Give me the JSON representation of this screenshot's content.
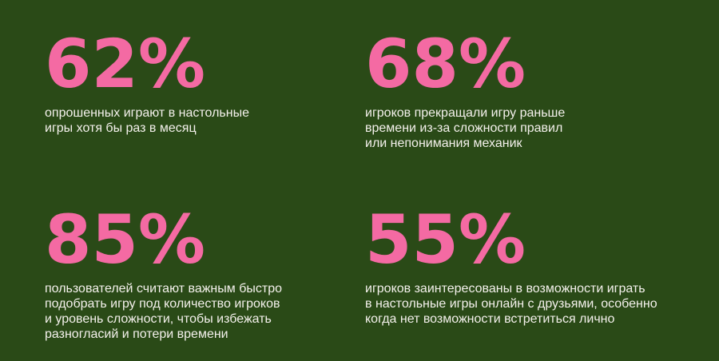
{
  "accent_color": "#f46aa3",
  "background_color": "#2a4a17",
  "text_color": "#f4f1ec",
  "stats": [
    {
      "value": "62%",
      "description": "опрошенных играют в настольные\nигры хотя бы раз в месяц"
    },
    {
      "value": "68%",
      "description": "игроков прекращали игру раньше\nвремени из-за сложности правил\nили непонимания механик"
    },
    {
      "value": "85%",
      "description": "пользователей считают важным быстро\nподобрать игру под количество игроков\nи уровень сложности, чтобы избежать\nразногласий и потери времени"
    },
    {
      "value": "55%",
      "description": "игроков заинтересованы в возможности играть\nв настольные игры онлайн с друзьями, особенно\nкогда нет возможности встретиться лично"
    }
  ]
}
